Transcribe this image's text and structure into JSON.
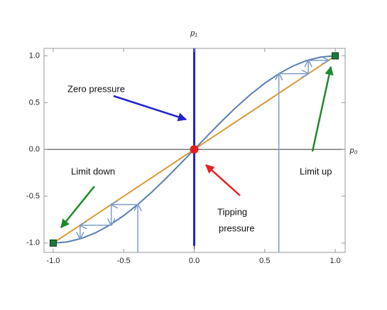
{
  "chart_data": {
    "type": "line",
    "x_label": "p₀",
    "y_label": "p₁",
    "xlim": [
      -1.065,
      1.07
    ],
    "ylim": [
      -1.1,
      1.08
    ],
    "xticks": [
      {
        "value": -1,
        "label": "-1.0"
      },
      {
        "value": -0.5,
        "label": "-0.5"
      },
      {
        "value": 0,
        "label": "0.0"
      },
      {
        "value": 0.5,
        "label": "0.5"
      },
      {
        "value": 1,
        "label": "1.0"
      }
    ],
    "yticks": [
      {
        "value": -1,
        "label": "-1.0"
      },
      {
        "value": -0.5,
        "label": "-0.5"
      },
      {
        "value": 0,
        "label": "0.0"
      },
      {
        "value": 0.5,
        "label": "0.5"
      },
      {
        "value": 1,
        "label": "1.0"
      }
    ],
    "series": [
      {
        "color": "#2323d0",
        "width": 3,
        "x": [
          0,
          0
        ],
        "y": [
          1.08,
          -1.03
        ]
      },
      {
        "color": "#d99a3a",
        "width": 2,
        "x": [
          -1,
          1
        ],
        "y": [
          -1,
          1
        ]
      },
      {
        "color": "#5a7fb2",
        "width": 2,
        "x": [
          -1,
          -0.9,
          -0.8,
          -0.7,
          -0.6,
          -0.5,
          -0.4,
          -0.3,
          -0.2,
          -0.1,
          0,
          0.1,
          0.2,
          0.3,
          0.4,
          0.5,
          0.6,
          0.7,
          0.8,
          0.9,
          1
        ],
        "y": [
          -1,
          -0.988,
          -0.951,
          -0.891,
          -0.809,
          -0.707,
          -0.588,
          -0.454,
          -0.309,
          -0.156,
          0,
          0.156,
          0.309,
          0.454,
          0.588,
          0.707,
          0.809,
          0.891,
          0.951,
          0.988,
          1
        ]
      },
      {
        "color": "#7d9ccb",
        "width": 1.5,
        "arrows": true,
        "x": [
          0.6,
          0.6,
          0.809,
          0.809,
          0.951
        ],
        "y": [
          -1.1,
          0.809,
          0.809,
          0.951,
          0.951
        ]
      },
      {
        "color": "#7d9ccb",
        "width": 1.5,
        "arrows": true,
        "x": [
          -0.4,
          -0.4,
          -0.588,
          -0.588,
          -0.809,
          -0.809
        ],
        "y": [
          -1.1,
          -0.588,
          -0.588,
          -0.809,
          -0.809,
          -0.951
        ]
      }
    ],
    "points": [
      {
        "x": 0,
        "y": 0,
        "color": "#e02020",
        "marker": "circle"
      },
      {
        "x": -1,
        "y": -1,
        "color": "#1e7a3c",
        "marker": "square"
      },
      {
        "x": 1,
        "y": 1,
        "color": "#1e7a3c",
        "marker": "square"
      }
    ],
    "annotations": [
      {
        "lines": [
          "Zero pressure"
        ]
      },
      {
        "lines": [
          "Tipping",
          "pressure"
        ]
      },
      {
        "lines": [
          "Limit down"
        ]
      },
      {
        "lines": [
          "Limit up"
        ]
      }
    ]
  }
}
